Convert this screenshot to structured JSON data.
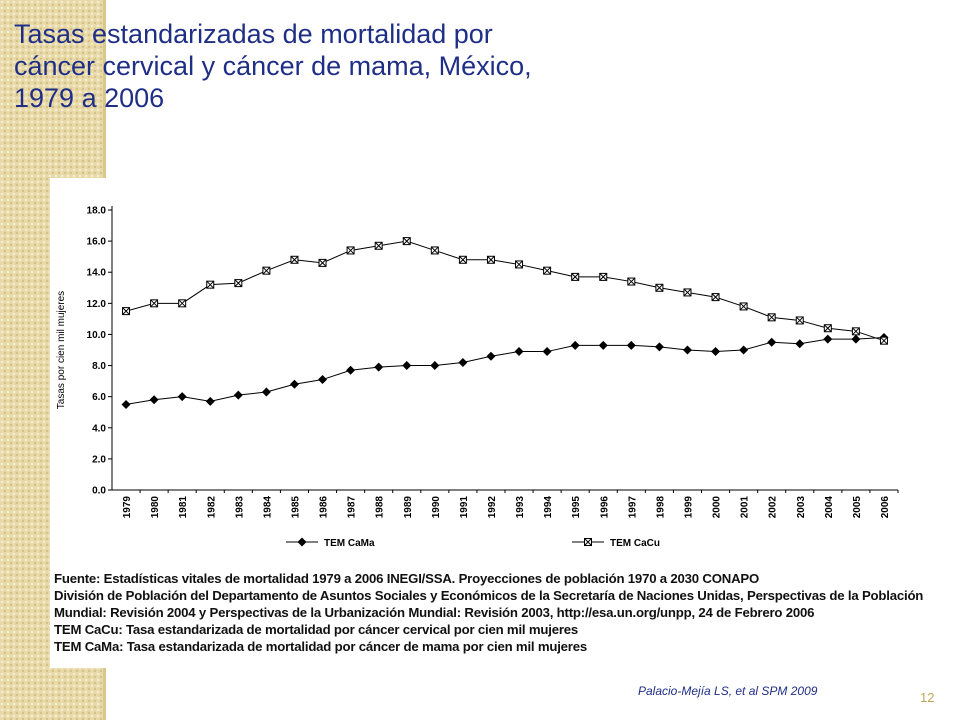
{
  "slide": {
    "title_lines": [
      "Tasas estandarizadas de mortalidad por",
      "cáncer cervical y cáncer de mama, México,",
      "1979 a 2006"
    ],
    "citation": "Palacio-Mejía LS, et al SPM 2009",
    "page_number": "12",
    "notes": [
      "Fuente: Estadísticas vitales de mortalidad 1979 a 2006 INEGI/SSA. Proyecciones de población 1970 a 2030 CONAPO",
      "División de Población del Departamento de Asuntos Sociales y Económicos de la Secretaría de Naciones Unidas, Perspectivas de la Población",
      "Mundial: Revisión 2004 y Perspectivas de la Urbanización Mundial: Revisión 2003, http://esa.un.org/unpp, 24 de Febrero 2006",
      "TEM CaCu: Tasa estandarizada de mortalidad por cáncer cervical por cien mil mujeres",
      "TEM CaMa: Tasa estandarizada de mortalidad por cáncer de mama por cien mil mujeres"
    ]
  },
  "colors": {
    "title": "#1f2f86",
    "band": "#e8d9a6",
    "series_line": "#000000"
  },
  "chart_data": {
    "type": "line",
    "title": "Tasas estandarizadas de mortalidad por cáncer cervical y cáncer de mama, México, 1979 a 2006",
    "xlabel": "",
    "ylabel": "Tasas por cien mil mujeres",
    "ylim": [
      0,
      18
    ],
    "yticks": [
      "0.0",
      "2.0",
      "4.0",
      "6.0",
      "8.0",
      "10.0",
      "12.0",
      "14.0",
      "16.0",
      "18.0"
    ],
    "categories": [
      "1979",
      "1980",
      "1981",
      "1982",
      "1983",
      "1984",
      "1985",
      "1986",
      "1987",
      "1988",
      "1989",
      "1990",
      "1991",
      "1992",
      "1993",
      "1994",
      "1995",
      "1996",
      "1997",
      "1998",
      "1999",
      "2000",
      "2001",
      "2002",
      "2003",
      "2004",
      "2005",
      "2006"
    ],
    "legend_position": "bottom",
    "series": [
      {
        "name": "TEM CaMa",
        "marker": "diamond",
        "values": [
          5.5,
          5.8,
          6.0,
          5.7,
          6.1,
          6.3,
          6.8,
          7.1,
          7.7,
          7.9,
          8.0,
          8.0,
          8.2,
          8.6,
          8.9,
          8.9,
          9.3,
          9.3,
          9.3,
          9.2,
          9.0,
          8.9,
          9.0,
          9.5,
          9.4,
          9.7,
          9.7,
          9.8
        ]
      },
      {
        "name": "TEM CaCu",
        "marker": "square-x",
        "values": [
          11.5,
          12.0,
          12.0,
          13.2,
          13.3,
          14.1,
          14.8,
          14.6,
          15.4,
          15.7,
          16.0,
          15.4,
          14.8,
          14.8,
          14.5,
          14.1,
          13.7,
          13.7,
          13.4,
          13.0,
          12.7,
          12.4,
          11.8,
          11.1,
          10.9,
          10.4,
          10.2,
          9.6
        ]
      }
    ]
  }
}
